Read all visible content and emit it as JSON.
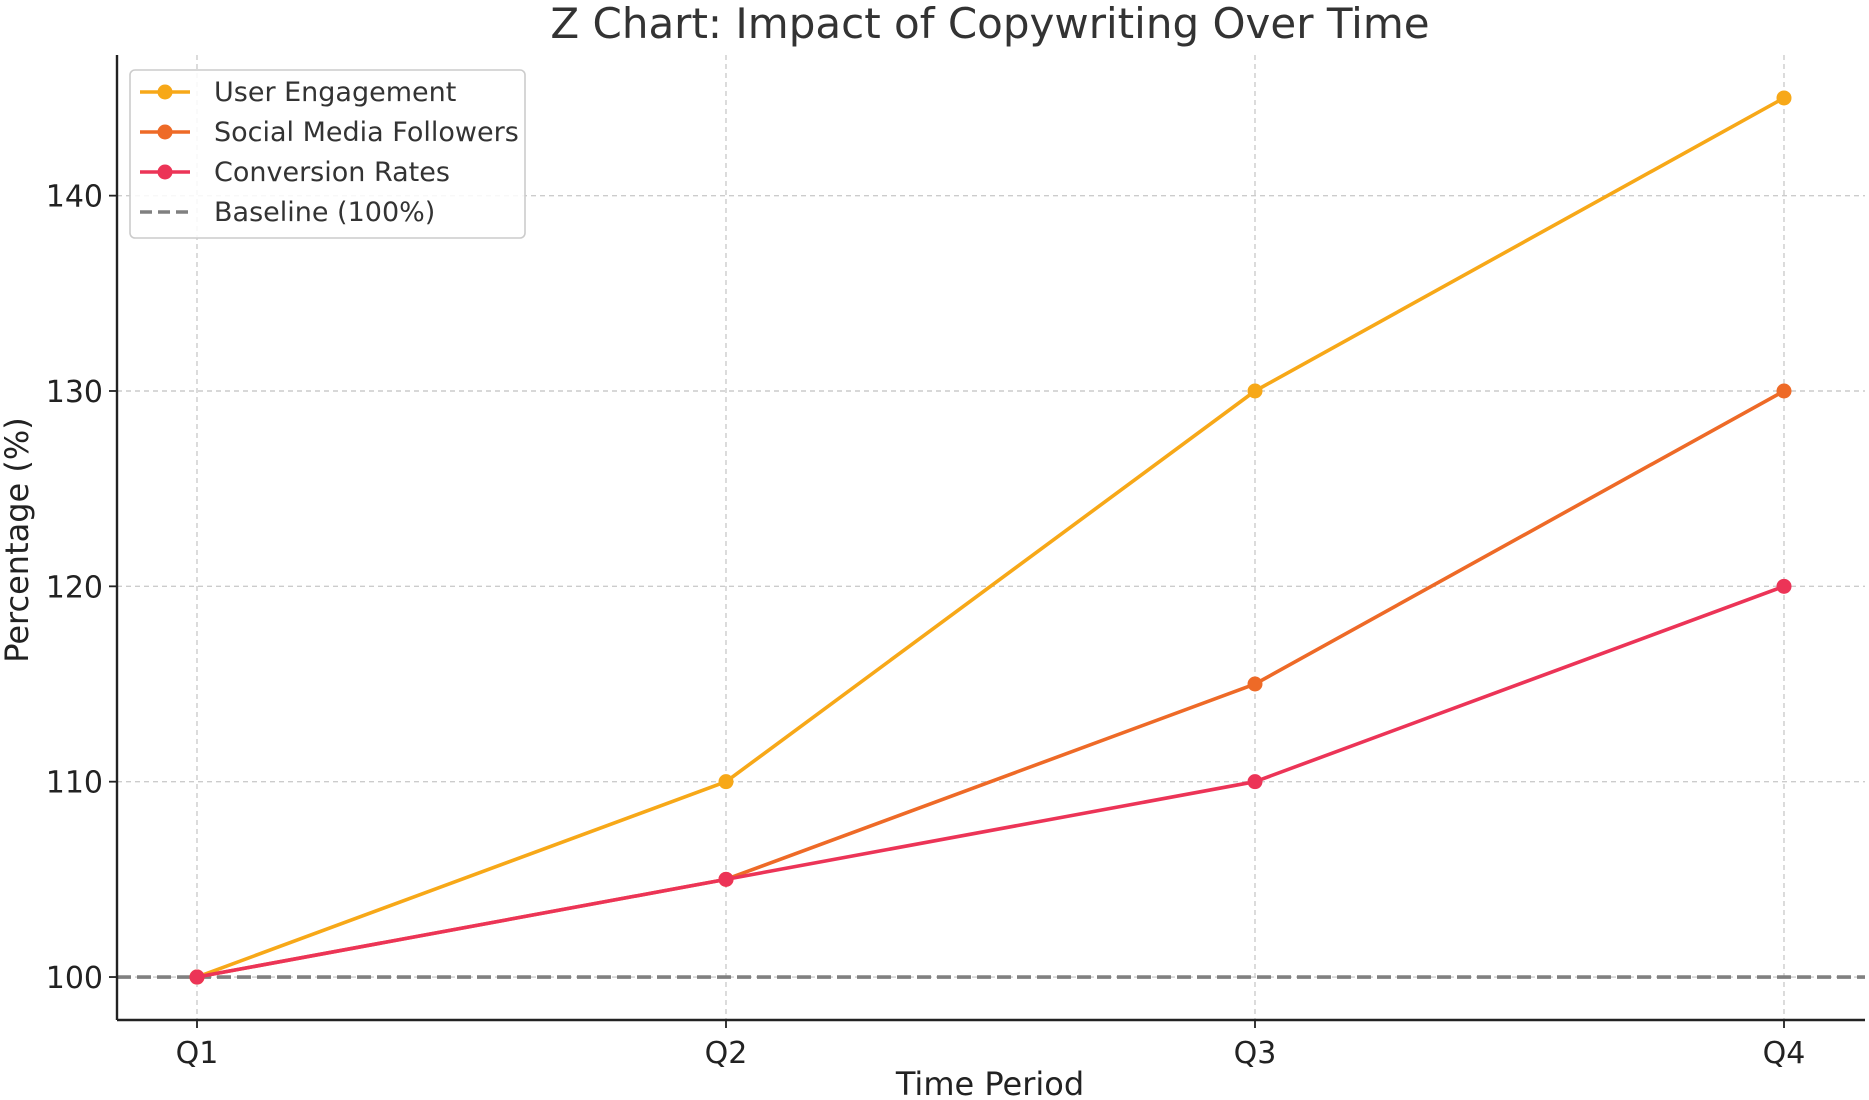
{
  "chart_data": {
    "type": "line",
    "title": "Z Chart: Impact of Copywriting Over Time",
    "xlabel": "Time Period",
    "ylabel": "Percentage (%)",
    "categories": [
      "Q1",
      "Q2",
      "Q3",
      "Q4"
    ],
    "ylim": [
      97.8,
      147.2
    ],
    "yticks": [
      100,
      110,
      120,
      130,
      140
    ],
    "grid": true,
    "legend_position": "top-left",
    "series": [
      {
        "name": "User Engagement",
        "values": [
          100,
          110,
          130,
          145
        ],
        "color": "#F7A818",
        "marker": "circle"
      },
      {
        "name": "Social Media Followers",
        "values": [
          100,
          105,
          115,
          130
        ],
        "color": "#EE6A27",
        "marker": "circle"
      },
      {
        "name": "Conversion Rates",
        "values": [
          100,
          105,
          110,
          120
        ],
        "color": "#EC3457",
        "marker": "circle"
      }
    ],
    "baseline": {
      "name": "Baseline (100%)",
      "value": 100,
      "color": "#808080",
      "style": "dashed"
    }
  }
}
